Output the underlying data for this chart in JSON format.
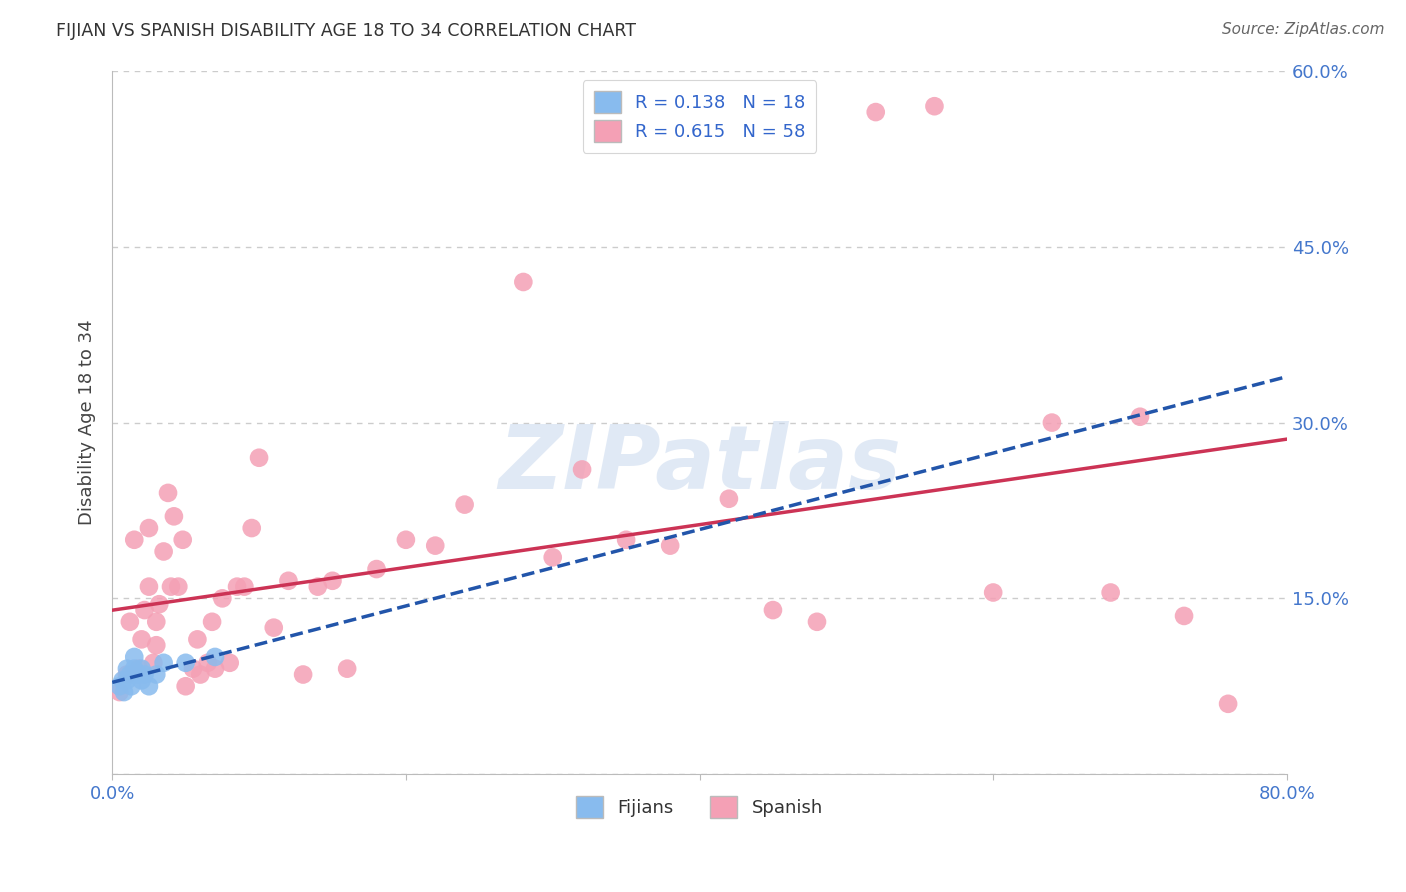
{
  "title": "FIJIAN VS SPANISH DISABILITY AGE 18 TO 34 CORRELATION CHART",
  "source": "Source: ZipAtlas.com",
  "ylabel_label": "Disability Age 18 to 34",
  "xlim": [
    0.0,
    0.8
  ],
  "ylim": [
    0.0,
    0.6
  ],
  "xticks": [
    0.0,
    0.2,
    0.4,
    0.6,
    0.8
  ],
  "xtick_labels": [
    "0.0%",
    "",
    "",
    "",
    "80.0%"
  ],
  "yticks": [
    0.0,
    0.15,
    0.3,
    0.45,
    0.6
  ],
  "right_yticks": [
    0.15,
    0.3,
    0.45,
    0.6
  ],
  "right_ytick_labels": [
    "15.0%",
    "30.0%",
    "45.0%",
    "60.0%"
  ],
  "fijian_color": "#88BBEE",
  "spanish_color": "#F4A0B5",
  "fijian_line_color": "#2255AA",
  "spanish_line_color": "#CC3355",
  "fijian_R": 0.138,
  "fijian_N": 18,
  "spanish_R": 0.615,
  "spanish_N": 58,
  "tick_label_color": "#4477CC",
  "watermark_text": "ZIPatlas",
  "fijian_scatter_x": [
    0.005,
    0.007,
    0.008,
    0.01,
    0.01,
    0.012,
    0.013,
    0.015,
    0.015,
    0.018,
    0.02,
    0.02,
    0.022,
    0.025,
    0.03,
    0.035,
    0.05,
    0.07
  ],
  "fijian_scatter_y": [
    0.075,
    0.08,
    0.07,
    0.08,
    0.09,
    0.085,
    0.075,
    0.09,
    0.1,
    0.085,
    0.08,
    0.09,
    0.085,
    0.075,
    0.085,
    0.095,
    0.095,
    0.1
  ],
  "spanish_scatter_x": [
    0.005,
    0.01,
    0.012,
    0.015,
    0.018,
    0.02,
    0.022,
    0.025,
    0.025,
    0.028,
    0.03,
    0.03,
    0.032,
    0.035,
    0.038,
    0.04,
    0.042,
    0.045,
    0.048,
    0.05,
    0.055,
    0.058,
    0.06,
    0.065,
    0.068,
    0.07,
    0.075,
    0.08,
    0.085,
    0.09,
    0.095,
    0.1,
    0.11,
    0.12,
    0.13,
    0.14,
    0.15,
    0.16,
    0.18,
    0.2,
    0.22,
    0.24,
    0.28,
    0.3,
    0.32,
    0.35,
    0.38,
    0.42,
    0.45,
    0.48,
    0.52,
    0.56,
    0.6,
    0.64,
    0.68,
    0.7,
    0.73,
    0.76
  ],
  "spanish_scatter_y": [
    0.07,
    0.085,
    0.13,
    0.2,
    0.09,
    0.115,
    0.14,
    0.16,
    0.21,
    0.095,
    0.11,
    0.13,
    0.145,
    0.19,
    0.24,
    0.16,
    0.22,
    0.16,
    0.2,
    0.075,
    0.09,
    0.115,
    0.085,
    0.095,
    0.13,
    0.09,
    0.15,
    0.095,
    0.16,
    0.16,
    0.21,
    0.27,
    0.125,
    0.165,
    0.085,
    0.16,
    0.165,
    0.09,
    0.175,
    0.2,
    0.195,
    0.23,
    0.42,
    0.185,
    0.26,
    0.2,
    0.195,
    0.235,
    0.14,
    0.13,
    0.565,
    0.57,
    0.155,
    0.3,
    0.155,
    0.305,
    0.135,
    0.06
  ],
  "background_color": "#FFFFFF",
  "grid_color": "#CCCCCC",
  "source_color": "#666666"
}
